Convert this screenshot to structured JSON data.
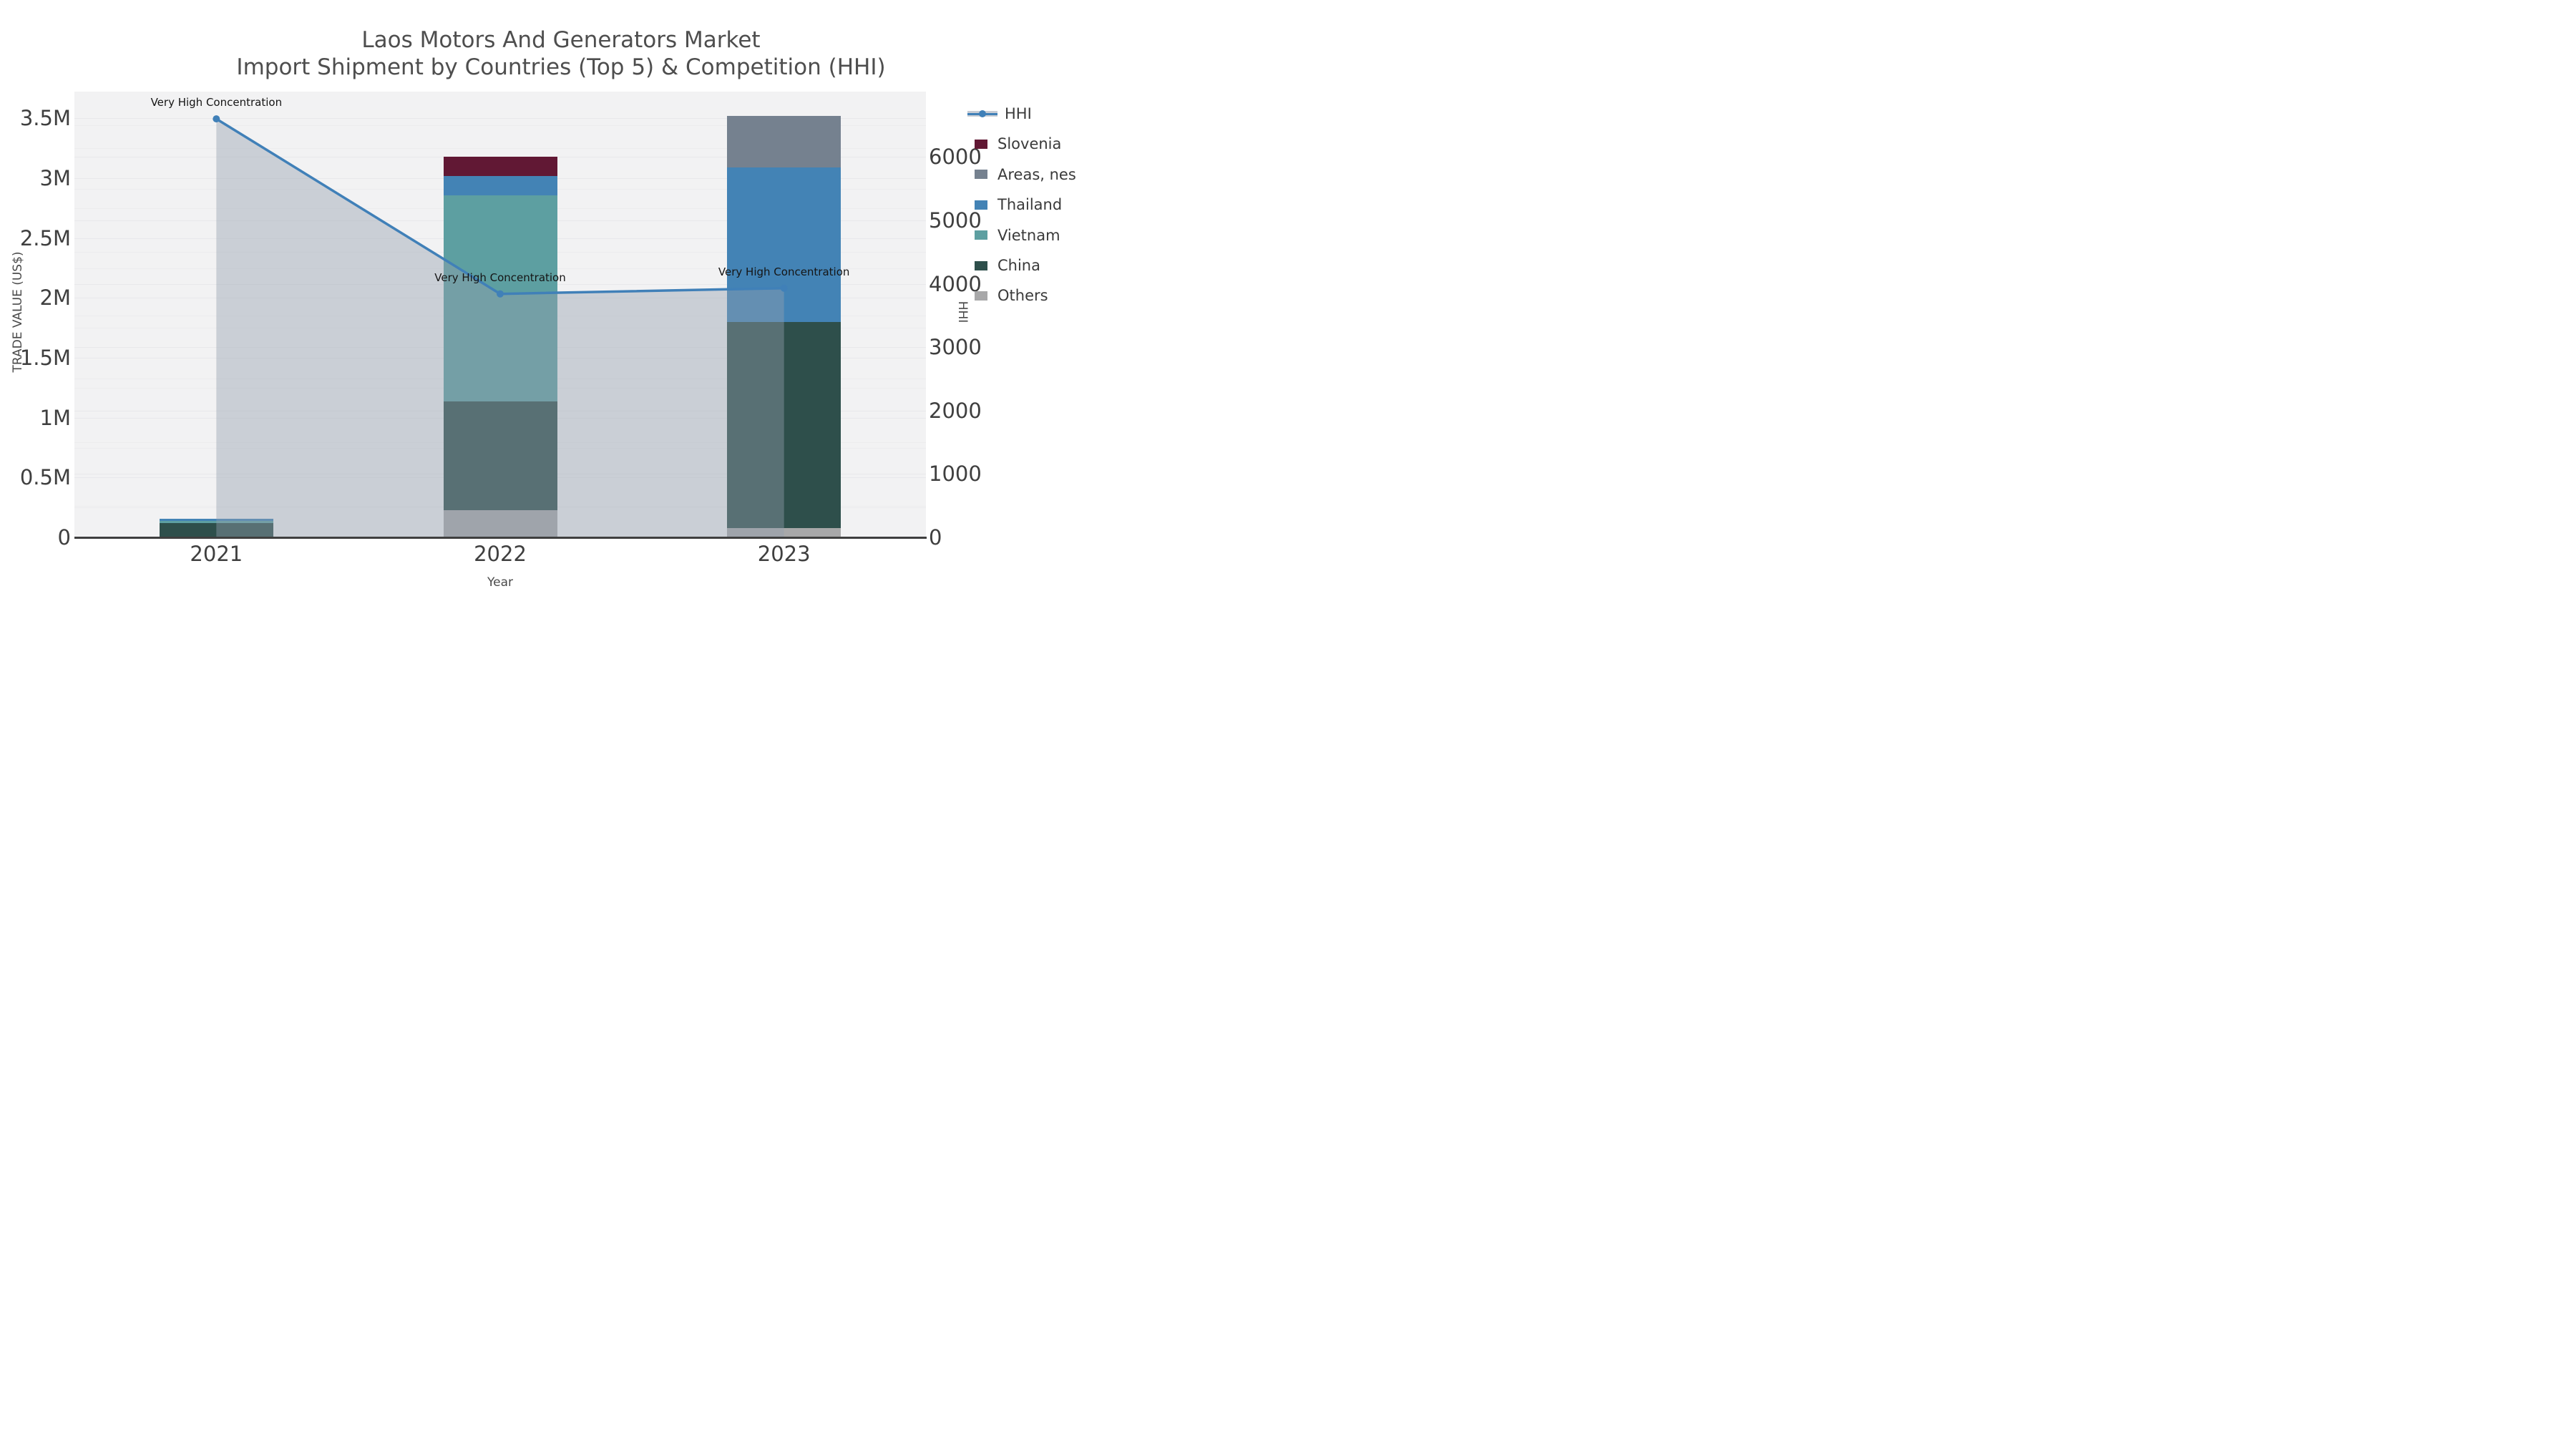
{
  "title": {
    "line1": "Laos Motors And Generators Market",
    "line2": "Import Shipment by Countries (Top 5) & Competition (HHI)"
  },
  "axes": {
    "x": {
      "title": "Year",
      "ticks": [
        "2021",
        "2022",
        "2023"
      ]
    },
    "y_left": {
      "title": "TRADE VALUE (US$)",
      "max": 3724000,
      "ticks": [
        {
          "v": 0,
          "label": "0"
        },
        {
          "v": 500000,
          "label": "0.5M"
        },
        {
          "v": 1000000,
          "label": "1M"
        },
        {
          "v": 1500000,
          "label": "1.5M"
        },
        {
          "v": 2000000,
          "label": "2M"
        },
        {
          "v": 2500000,
          "label": "2.5M"
        },
        {
          "v": 3000000,
          "label": "3M"
        },
        {
          "v": 3500000,
          "label": "3.5M"
        }
      ]
    },
    "y_right": {
      "title": "HHI",
      "max": 7030,
      "ticks": [
        {
          "v": 0,
          "label": "0"
        },
        {
          "v": 1000,
          "label": "1000"
        },
        {
          "v": 2000,
          "label": "2000"
        },
        {
          "v": 3000,
          "label": "3000"
        },
        {
          "v": 4000,
          "label": "4000"
        },
        {
          "v": 5000,
          "label": "5000"
        },
        {
          "v": 6000,
          "label": "6000"
        }
      ]
    }
  },
  "colors": {
    "hhi_line": "#4080b8",
    "hhi_fill": "rgba(148,160,175,0.42)",
    "plot_bg": "#f2f2f3",
    "axis_line": "#3f3f3f"
  },
  "chart_data": {
    "type": "bar+line",
    "categories": [
      "2021",
      "2022",
      "2023"
    ],
    "stack_order_note": "series listed bottom-to-top of the stacked bars; values in US$ trade value (left axis)",
    "series": [
      {
        "name": "Others",
        "color": "#a8a8a9",
        "values": [
          0,
          227000,
          80000
        ]
      },
      {
        "name": "China",
        "color": "#2e4f4b",
        "values": [
          121000,
          906000,
          1722000
        ]
      },
      {
        "name": "Vietnam",
        "color": "#5d9fa1",
        "values": [
          15600,
          1727000,
          0
        ]
      },
      {
        "name": "Thailand",
        "color": "#4383b5",
        "values": [
          17400,
          160000,
          1291000
        ]
      },
      {
        "name": "Areas, nes",
        "color": "#75818f",
        "values": [
          0,
          0,
          428000
        ]
      },
      {
        "name": "Slovenia",
        "color": "#611834",
        "values": [
          0,
          160000,
          0
        ]
      }
    ],
    "hhi": {
      "name": "HHI",
      "axis": "right",
      "values": [
        6600,
        3840,
        3930
      ]
    },
    "annotations": [
      "Very High Concentration",
      "Very High Concentration",
      "Very High Concentration"
    ],
    "legend": [
      {
        "label": "HHI",
        "type": "line"
      },
      {
        "label": "Slovenia",
        "type": "swatch",
        "color": "#611834"
      },
      {
        "label": "Areas, nes",
        "type": "swatch",
        "color": "#75818f"
      },
      {
        "label": "Thailand",
        "type": "swatch",
        "color": "#4383b5"
      },
      {
        "label": "Vietnam",
        "type": "swatch",
        "color": "#5d9fa1"
      },
      {
        "label": "China",
        "type": "swatch",
        "color": "#2e4f4b"
      },
      {
        "label": "Others",
        "type": "swatch",
        "color": "#a8a8a9"
      }
    ]
  }
}
